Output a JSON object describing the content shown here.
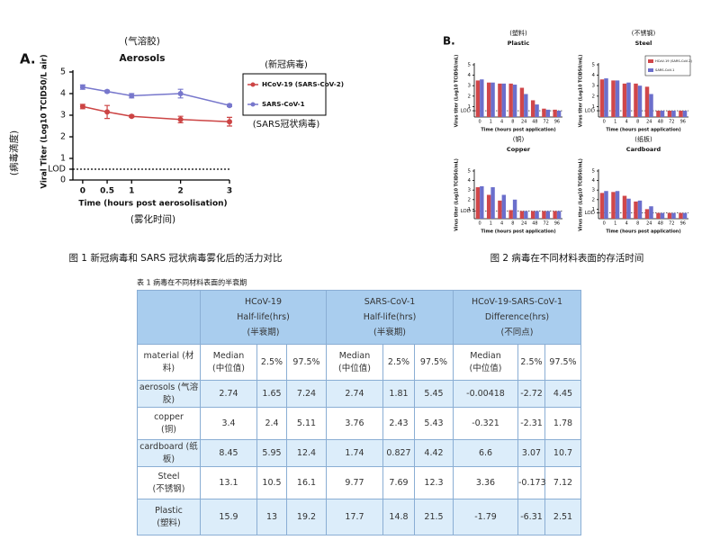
{
  "chart_data": [
    {
      "type": "line",
      "panel": "A.",
      "title": "Aerosols",
      "title_note": "(气溶胶)",
      "xlabel": "Time (hours post aerosolisation)",
      "xlabel_note": "(雾化时间)",
      "ylabel": "Viral Titer (Log10 TCID50/L air)",
      "ylabel_note": "(病毒滴度)",
      "legend": "outside right",
      "legend_notes": [
        "(新冠病毒)",
        "(SARS冠状病毒)"
      ],
      "x": [
        0,
        0.5,
        1,
        2,
        3
      ],
      "xlim": [
        -0.2,
        3
      ],
      "xticks": [
        0,
        0.5,
        1,
        2,
        3
      ],
      "ylim": [
        0,
        5
      ],
      "yticks": [
        0,
        {
          "value": 0.5,
          "label": "LOD"
        },
        1,
        2,
        3,
        4,
        5
      ],
      "series": [
        {
          "name": "HCoV-19 (SARS-CoV-2)",
          "color": "#cc4444",
          "values": [
            3.4,
            3.15,
            2.95,
            2.8,
            2.7
          ],
          "errors": [
            0.1,
            0.3,
            0.05,
            0.15,
            0.2
          ]
        },
        {
          "name": "SARS-CoV-1",
          "color": "#7777cc",
          "values": [
            4.3,
            4.1,
            3.9,
            4.0,
            3.45
          ],
          "errors": [
            0.1,
            0.05,
            0.1,
            0.2,
            0.05
          ]
        }
      ]
    },
    {
      "type": "bar",
      "panel": "B.",
      "title": "Plastic",
      "title_note": "(塑料)",
      "xlabel": "Time (hours post application)",
      "ylabel": "Virus titer (Log10 TCID50/mL)",
      "categories": [
        "0",
        "1",
        "4",
        "8",
        "24",
        "48",
        "72",
        "96"
      ],
      "ylim": [
        0,
        5
      ],
      "yticks": [
        {
          "value": 0.6,
          "label": "LOD"
        },
        1,
        2,
        3,
        4,
        5
      ],
      "series": [
        {
          "name": "HCoV-19 (SARS-CoV-2)",
          "color": "#d0474a",
          "values": [
            3.5,
            3.3,
            3.2,
            3.2,
            2.8,
            1.6,
            0.8,
            0.7
          ]
        },
        {
          "name": "SARS-CoV-1",
          "color": "#6b6fcc",
          "values": [
            3.6,
            3.3,
            3.2,
            3.1,
            2.2,
            1.2,
            0.7,
            0.6
          ]
        }
      ]
    },
    {
      "type": "bar",
      "title": "Steel",
      "title_note": "(不锈钢)",
      "legend": "upper right",
      "xlabel": "Time (hours post application)",
      "ylabel": "Virus titer (Log10 TCID50/mL)",
      "categories": [
        "0",
        "1",
        "4",
        "8",
        "24",
        "48",
        "72",
        "96"
      ],
      "ylim": [
        0,
        5
      ],
      "yticks": [
        {
          "value": 0.6,
          "label": "LOD"
        },
        1,
        2,
        3,
        4,
        5
      ],
      "series": [
        {
          "name": "HCoV-19 (SARS-CoV-2)",
          "color": "#d0474a",
          "values": [
            3.6,
            3.5,
            3.2,
            3.2,
            2.9,
            0.6,
            0.6,
            0.6
          ]
        },
        {
          "name": "SARS-CoV-1",
          "color": "#6b6fcc",
          "values": [
            3.7,
            3.5,
            3.3,
            3.0,
            2.2,
            0.6,
            0.6,
            0.6
          ]
        }
      ]
    },
    {
      "type": "bar",
      "title": "Copper",
      "title_note": "(铜)",
      "xlabel": "Time (hours post application)",
      "ylabel": "Virus titer (Log10 TCID50/mL)",
      "categories": [
        "0",
        "1",
        "4",
        "8",
        "24",
        "48",
        "72",
        "96"
      ],
      "ylim": [
        0,
        5
      ],
      "yticks": [
        {
          "value": 0.8,
          "label": "LOD"
        },
        1,
        2,
        3,
        4,
        5
      ],
      "series": [
        {
          "name": "HCoV-19 (SARS-CoV-2)",
          "color": "#d0474a",
          "values": [
            3.3,
            2.5,
            1.9,
            0.9,
            0.8,
            0.8,
            0.8,
            0.8
          ]
        },
        {
          "name": "SARS-CoV-1",
          "color": "#6b6fcc",
          "values": [
            3.4,
            3.3,
            2.5,
            2.0,
            0.8,
            0.8,
            0.8,
            0.8
          ]
        }
      ]
    },
    {
      "type": "bar",
      "title": "Cardboard",
      "title_note": "(纸板)",
      "xlabel": "Time (hours post application)",
      "ylabel": "Virus titer (Log10 TCID50/mL)",
      "categories": [
        "0",
        "1",
        "4",
        "8",
        "24",
        "48",
        "72",
        "96"
      ],
      "ylim": [
        0,
        5
      ],
      "yticks": [
        {
          "value": 0.6,
          "label": "LOD"
        },
        1,
        2,
        3,
        4,
        5
      ],
      "series": [
        {
          "name": "HCoV-19 (SARS-CoV-2)",
          "color": "#d0474a",
          "values": [
            2.7,
            2.8,
            2.4,
            1.8,
            1.0,
            0.6,
            0.6,
            0.6
          ]
        },
        {
          "name": "SARS-CoV-1",
          "color": "#6b6fcc",
          "values": [
            2.9,
            2.9,
            2.1,
            1.9,
            1.3,
            0.6,
            0.6,
            0.6
          ]
        }
      ]
    }
  ],
  "captions": [
    "图 1 新冠病毒和 SARS 冠状病毒雾化后的活力对比",
    "图 2 病毒在不同材料表面的存活时间"
  ],
  "table": {
    "title": "表 1 病毒在不同材料表面的半衰期",
    "groups": [
      {
        "name": "HCoV-19",
        "metric": "Half-life(hrs)",
        "note": "(半衰期)"
      },
      {
        "name": "SARS-CoV-1",
        "metric": "Half-life(hrs)",
        "note": "(半衰期)"
      },
      {
        "name": "HCoV-19-SARS-CoV-1",
        "metric": "Difference(hrs)",
        "note": "(不同点)"
      }
    ],
    "subheader": {
      "label": "material (材料)",
      "median": "Median",
      "median_note": "(中位值)",
      "low": "2.5%",
      "high": "97.5%"
    },
    "rows": [
      {
        "label": [
          "aerosols (气溶胶)"
        ],
        "values": [
          2.74,
          1.65,
          7.24,
          2.74,
          1.81,
          5.45,
          -0.00418,
          -2.72,
          4.45
        ]
      },
      {
        "label": [
          "copper",
          "(铜)"
        ],
        "values": [
          3.4,
          2.4,
          5.11,
          3.76,
          2.43,
          5.43,
          -0.321,
          -2.31,
          1.78
        ]
      },
      {
        "label": [
          "cardboard (纸板)"
        ],
        "values": [
          8.45,
          5.95,
          12.4,
          1.74,
          0.827,
          4.42,
          6.6,
          3.07,
          10.7
        ]
      },
      {
        "label": [
          "Steel",
          "(不锈钢)"
        ],
        "values": [
          13.1,
          10.5,
          16.1,
          9.77,
          7.69,
          12.3,
          3.36,
          -0.173,
          7.12
        ]
      },
      {
        "label": [
          "Plastic",
          "(塑料)"
        ],
        "values": [
          15.9,
          13,
          19.2,
          17.7,
          14.8,
          21.5,
          -1.79,
          -6.31,
          2.51
        ]
      }
    ]
  }
}
